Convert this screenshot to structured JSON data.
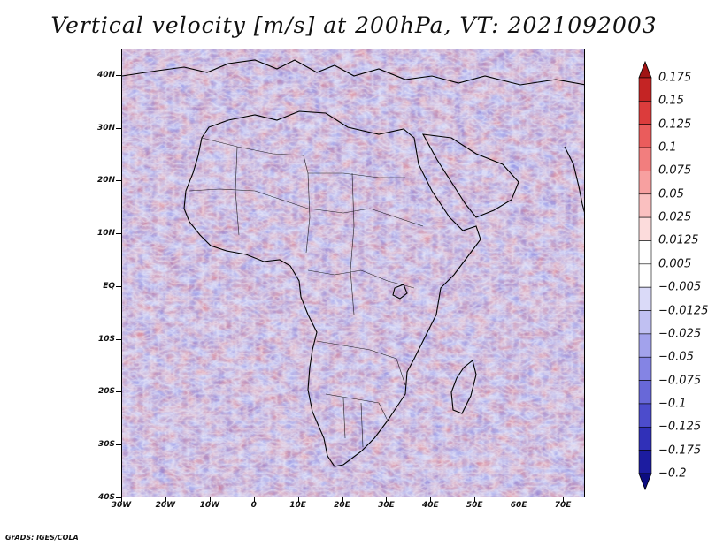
{
  "title": "Vertical velocity [m/s] at 200hPa, VT: 2021092003",
  "footer": "GrADS: IGES/COLA",
  "axes": {
    "lat_labels": [
      "40N",
      "30N",
      "20N",
      "10N",
      "EQ",
      "10S",
      "20S",
      "30S",
      "40S"
    ],
    "lon_labels": [
      "30W",
      "20W",
      "10W",
      "0",
      "10E",
      "20E",
      "30E",
      "40E",
      "50E",
      "60E",
      "70E"
    ],
    "lat_range": [
      -40,
      45
    ],
    "lon_range": [
      -30,
      75
    ]
  },
  "colorbar": {
    "levels": [
      "0.175",
      "0.15",
      "0.125",
      "0.1",
      "0.075",
      "0.05",
      "0.025",
      "0.0125",
      "0.005",
      "−0.005",
      "−0.0125",
      "−0.025",
      "−0.05",
      "−0.075",
      "−0.1",
      "−0.125",
      "−0.175",
      "−0.2"
    ],
    "colors": [
      "#a01414",
      "#c42424",
      "#dc3c3c",
      "#ea5c5c",
      "#f27e7e",
      "#f7a0a0",
      "#fac0c0",
      "#fcdcdc",
      "#ffffff",
      "#ffffff",
      "#dadaf8",
      "#c0c0f2",
      "#a2a2ec",
      "#8484e4",
      "#6868d8",
      "#4c4ccc",
      "#3030b8",
      "#1c1ca0",
      "#0c0c80"
    ]
  },
  "field_colors": {
    "positive_light": "#f4a8a8",
    "positive_strong": "#d83a3a",
    "negative_light": "#b4b4f0",
    "negative_strong": "#5a5ad8",
    "neutral": "#ffffff"
  }
}
